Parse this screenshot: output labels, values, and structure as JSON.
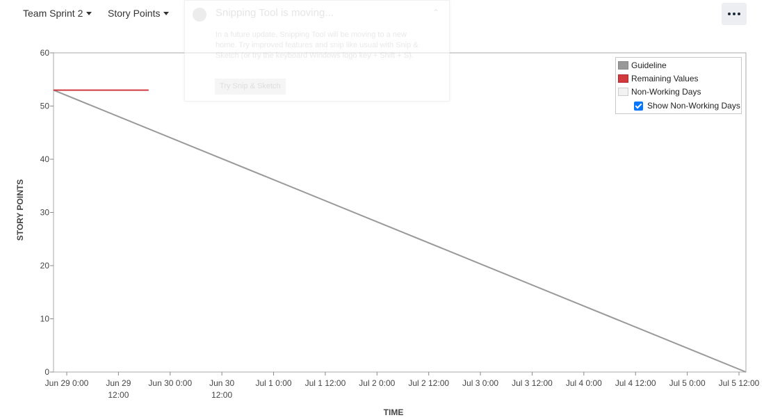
{
  "toolbar": {
    "team_dropdown": "Team Sprint 2",
    "metric_dropdown": "Story Points"
  },
  "notification": {
    "title": "Snipping Tool is moving...",
    "body": "In a future update, Snipping Tool will be moving to a new home. Try improved features and snip like usual with Snip & Sketch (or try the keyboard Windows logo key + Shift + S).",
    "button": "Try Snip & Sketch"
  },
  "legend": {
    "guideline": "Guideline",
    "remaining": "Remaining Values",
    "non_working": "Non-Working Days",
    "show_non_working": "Show Non-Working Days",
    "show_non_working_checked": true,
    "colors": {
      "guideline": "#999999",
      "remaining": "#d0393e",
      "non_working": "#f2f2f2"
    }
  },
  "chart_data": {
    "type": "line",
    "xlabel": "TIME",
    "ylabel": "STORY POINTS",
    "ylim": [
      0,
      60
    ],
    "yticks": [
      0,
      10,
      20,
      30,
      40,
      50,
      60
    ],
    "xticks": [
      {
        "line1": "Jun 29 0:00",
        "line2": ""
      },
      {
        "line1": "Jun 29",
        "line2": "12:00"
      },
      {
        "line1": "Jun 30 0:00",
        "line2": ""
      },
      {
        "line1": "Jun 30",
        "line2": "12:00"
      },
      {
        "line1": "Jul 1 0:00",
        "line2": ""
      },
      {
        "line1": "Jul 1 12:00",
        "line2": ""
      },
      {
        "line1": "Jul 2 0:00",
        "line2": ""
      },
      {
        "line1": "Jul 2 12:00",
        "line2": ""
      },
      {
        "line1": "Jul 3 0:00",
        "line2": ""
      },
      {
        "line1": "Jul 3 12:00",
        "line2": ""
      },
      {
        "line1": "Jul 4 0:00",
        "line2": ""
      },
      {
        "line1": "Jul 4 12:00",
        "line2": ""
      },
      {
        "line1": "Jul 5 0:00",
        "line2": ""
      },
      {
        "line1": "Jul 5 12:00",
        "line2": ""
      }
    ],
    "series": [
      {
        "name": "Guideline",
        "color": "#999999",
        "points": [
          [
            "Jun 29 0:00",
            53
          ],
          [
            "Jul 5 12:00",
            0
          ]
        ]
      },
      {
        "name": "Remaining Values",
        "color": "#d0393e",
        "points": [
          [
            "Jun 29 0:00",
            53
          ],
          [
            "Jun 29 19:00",
            53
          ]
        ]
      }
    ],
    "grid": false
  }
}
